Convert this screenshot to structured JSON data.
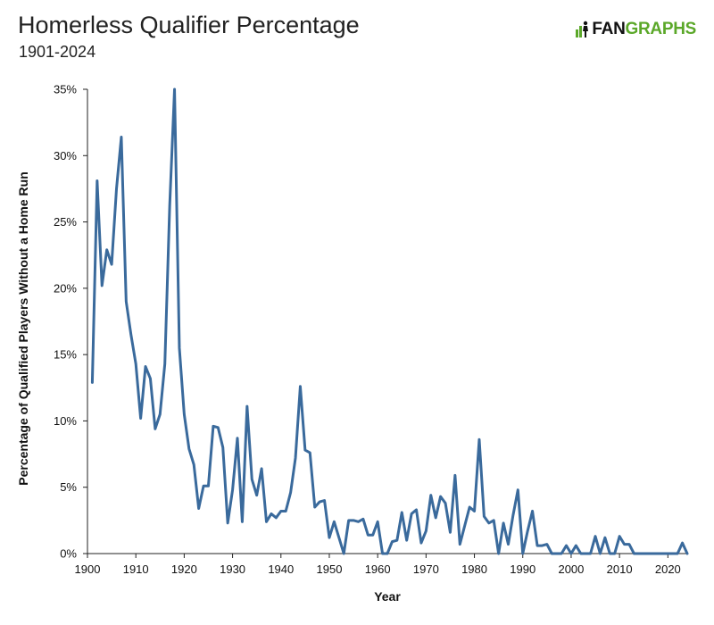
{
  "header": {
    "title": "Homerless Qualifier Percentage",
    "subtitle": "1901-2024",
    "logo_text_a": "FAN",
    "logo_text_b": "GRAPHS",
    "brand_color": "#5ba829"
  },
  "chart_data": {
    "type": "line",
    "title": "Homerless Qualifier Percentage",
    "subtitle": "1901-2024",
    "xlabel": "Year",
    "ylabel": "Percentage of Qualified Players Without a Home Run",
    "xlim": [
      1900,
      2024
    ],
    "ylim": [
      0,
      35
    ],
    "x_ticks": [
      1900,
      1910,
      1920,
      1930,
      1940,
      1950,
      1960,
      1970,
      1980,
      1990,
      2000,
      2010,
      2020
    ],
    "y_ticks": [
      0,
      5,
      10,
      15,
      20,
      25,
      30,
      35
    ],
    "y_tick_labels": [
      "0%",
      "5%",
      "10%",
      "15%",
      "20%",
      "25%",
      "30%",
      "35%"
    ],
    "grid": false,
    "line_color": "#3a6a9c",
    "series": [
      {
        "x": [
          1901,
          1902,
          1903,
          1904,
          1905,
          1906,
          1907,
          1908,
          1909,
          1910,
          1911,
          1912,
          1913,
          1914,
          1915,
          1916,
          1917,
          1918,
          1919,
          1920,
          1921,
          1922,
          1923,
          1924,
          1925,
          1926,
          1927,
          1928,
          1929,
          1930,
          1931,
          1932,
          1933,
          1934,
          1935,
          1936,
          1937,
          1938,
          1939,
          1940,
          1941,
          1942,
          1943,
          1944,
          1945,
          1946,
          1947,
          1948,
          1949,
          1950,
          1951,
          1952,
          1953,
          1954,
          1955,
          1956,
          1957,
          1958,
          1959,
          1960,
          1961,
          1962,
          1963,
          1964,
          1965,
          1966,
          1967,
          1968,
          1969,
          1970,
          1971,
          1972,
          1973,
          1974,
          1975,
          1976,
          1977,
          1978,
          1979,
          1980,
          1981,
          1982,
          1983,
          1984,
          1985,
          1986,
          1987,
          1988,
          1989,
          1990,
          1991,
          1992,
          1993,
          1994,
          1995,
          1996,
          1997,
          1998,
          1999,
          2000,
          2001,
          2002,
          2003,
          2004,
          2005,
          2006,
          2007,
          2008,
          2009,
          2010,
          2011,
          2012,
          2013,
          2014,
          2015,
          2016,
          2017,
          2018,
          2019,
          2020,
          2021,
          2022,
          2023,
          2024
        ],
        "values": [
          12.9,
          28.1,
          20.2,
          22.9,
          21.8,
          27.5,
          31.4,
          19.0,
          16.5,
          14.3,
          10.2,
          14.1,
          13.2,
          9.4,
          10.5,
          14.3,
          26.2,
          35.0,
          15.5,
          10.5,
          7.9,
          6.7,
          3.4,
          5.1,
          5.1,
          9.6,
          9.5,
          8.0,
          2.3,
          4.8,
          8.7,
          2.4,
          11.1,
          5.6,
          4.4,
          6.4,
          2.4,
          3.0,
          2.7,
          3.2,
          3.2,
          4.6,
          7.2,
          12.6,
          7.8,
          7.6,
          3.5,
          3.9,
          4.0,
          1.2,
          2.4,
          1.2,
          0.0,
          2.5,
          2.5,
          2.4,
          2.6,
          1.4,
          1.4,
          2.4,
          0.0,
          0.0,
          0.9,
          1.0,
          3.1,
          1.0,
          3.0,
          3.3,
          0.8,
          1.7,
          4.4,
          2.7,
          4.3,
          3.8,
          1.6,
          5.9,
          0.7,
          2.1,
          3.5,
          3.2,
          8.6,
          2.8,
          2.3,
          2.5,
          0.0,
          2.3,
          0.7,
          2.9,
          4.8,
          0.0,
          1.7,
          3.2,
          0.6,
          0.6,
          0.7,
          0.0,
          0.0,
          0.0,
          0.6,
          0.0,
          0.6,
          0.0,
          0.0,
          0.0,
          1.3,
          0.0,
          1.2,
          0.0,
          0.0,
          1.3,
          0.7,
          0.7,
          0.0,
          0.0,
          0.0,
          0.0,
          0.0,
          0.0,
          0.0,
          0.0,
          0.0,
          0.0,
          0.8,
          0.0
        ]
      }
    ]
  }
}
